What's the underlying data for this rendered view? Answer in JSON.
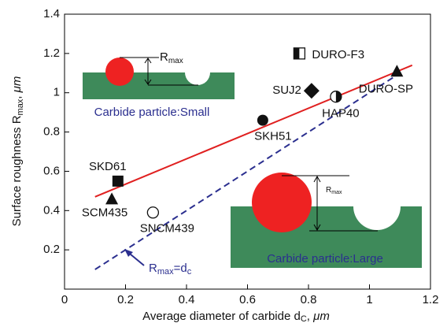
{
  "chart_data": {
    "type": "scatter",
    "y_label": [
      "Surface roughness R",
      "max",
      ", ",
      "μm"
    ],
    "x_label": [
      "Average diameter of carbide d",
      "C",
      ", ",
      "μm"
    ],
    "xlim": [
      0,
      1.2
    ],
    "xticks": [
      0,
      0.2,
      0.4,
      0.6,
      0.8,
      1,
      1.2
    ],
    "ylim": [
      0,
      1.4
    ],
    "yticks": [
      0.2,
      0.4,
      0.6,
      0.8,
      1,
      1.2,
      1.4
    ],
    "points": [
      {
        "name": "SKD61",
        "x": 0.175,
        "y": 0.55,
        "marker": "square"
      },
      {
        "name": "SCM435",
        "x": 0.155,
        "y": 0.46,
        "marker": "triangle"
      },
      {
        "name": "SNCM439",
        "x": 0.29,
        "y": 0.39,
        "marker": "open-circle"
      },
      {
        "name": "SKH51",
        "x": 0.65,
        "y": 0.86,
        "marker": "circle"
      },
      {
        "name": "SUJ2",
        "x": 0.81,
        "y": 1.01,
        "marker": "diamond"
      },
      {
        "name": "HAP40",
        "x": 0.89,
        "y": 0.98,
        "marker": "half-circle"
      },
      {
        "name": "DURO-F3",
        "x": 0.77,
        "y": 1.2,
        "marker": "half-square"
      },
      {
        "name": "DURO-SP",
        "x": 1.09,
        "y": 1.11,
        "marker": "triangle"
      }
    ],
    "fit_line": {
      "x": [
        0.1,
        1.14
      ],
      "y": [
        0.47,
        1.14
      ],
      "color": "#e02020"
    },
    "equality_line": {
      "x": [
        0.1,
        1.08
      ],
      "y": [
        0.1,
        1.08
      ],
      "color": "#2b2f8f",
      "label": [
        "R",
        "max",
        "=d",
        "c"
      ]
    },
    "insets": {
      "small": {
        "caption": "Carbide particle:Small",
        "label": [
          "R",
          "max"
        ]
      },
      "large": {
        "caption": "Carbide particle:Large",
        "label": [
          "R",
          "max"
        ]
      }
    }
  }
}
